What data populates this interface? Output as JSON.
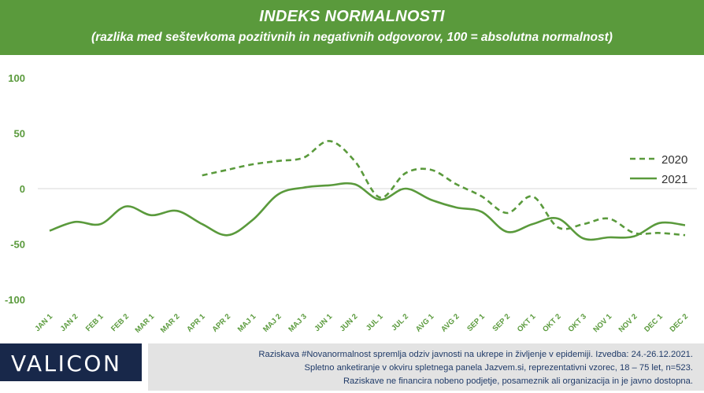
{
  "header": {
    "title": "INDEKS NORMALNOSTI",
    "subtitle": "(razlika med seštevkoma pozitivnih in negativnih odgovorov, 100 = absolutna normalnost)"
  },
  "colors": {
    "header_bg": "#5a9a3c",
    "line": "#5a9a3c",
    "axis_text": "#5a9a3c",
    "logo_bg": "#18284a",
    "note_bg": "#e3e3e3",
    "note_text": "#1f3a68"
  },
  "chart_data": {
    "type": "line",
    "title": "INDEKS NORMALNOSTI",
    "subtitle": "(razlika med seštevkoma pozitivnih in negativnih odgovorov, 100 = absolutna normalnost)",
    "categories": [
      "JAN 1",
      "JAN 2",
      "FEB 1",
      "FEB 2",
      "MAR 1",
      "MAR 2",
      "APR 1",
      "APR 2",
      "MAJ 1",
      "MAJ 2",
      "MAJ 3",
      "JUN 1",
      "JUN 2",
      "JUL 1",
      "JUL 2",
      "AVG 1",
      "AVG 2",
      "SEP 1",
      "SEP 2",
      "OKT 1",
      "OKT 2",
      "OKT 3",
      "NOV 1",
      "NOV 2",
      "DEC 1",
      "DEC 2"
    ],
    "ylim": [
      -100,
      100
    ],
    "yticks": [
      -100,
      -50,
      0,
      50,
      100
    ],
    "grid": false,
    "legend": "right",
    "series": [
      {
        "name": "2020",
        "style": "dashed",
        "values": [
          null,
          null,
          null,
          null,
          null,
          null,
          12,
          17,
          22,
          25,
          28,
          43,
          25,
          -8,
          14,
          17,
          4,
          -7,
          -22,
          -7,
          -35,
          -32,
          -27,
          -40,
          -40,
          -42
        ]
      },
      {
        "name": "2021",
        "style": "solid",
        "values": [
          -38,
          -30,
          -32,
          -16,
          -24,
          -20,
          -32,
          -42,
          -28,
          -5,
          1,
          3,
          4,
          -10,
          0,
          -10,
          -17,
          -21,
          -39,
          -32,
          -27,
          -45,
          -44,
          -43,
          -31,
          -33
        ]
      }
    ]
  },
  "footer": {
    "logo": "VALICON",
    "notes": [
      "Raziskava #Novanormalnost spremlja odziv javnosti na ukrepe in življenje v epidemiji. Izvedba: 24.-26.12.2021.",
      "Spletno anketiranje v okviru spletnega panela Jazvem.si, reprezentativni vzorec, 18 – 75 let, n=523.",
      "Raziskave ne financira nobeno podjetje, posameznik ali organizacija in je javno dostopna."
    ]
  }
}
